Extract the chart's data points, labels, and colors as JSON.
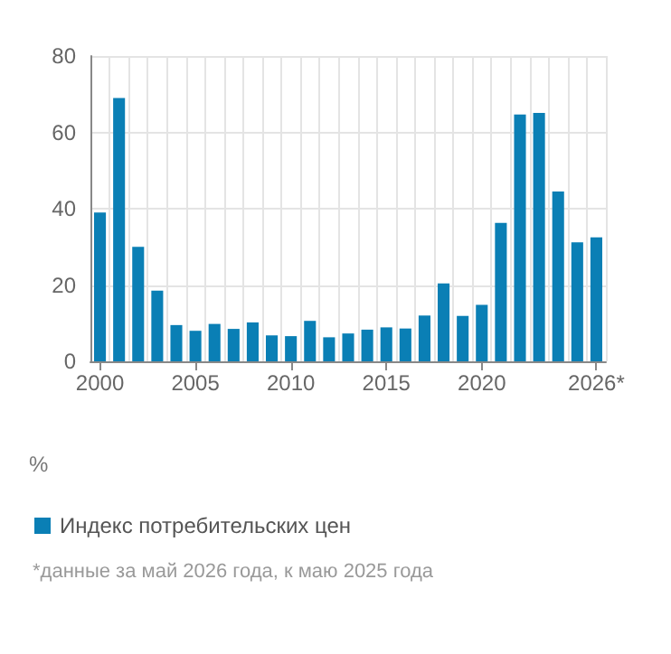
{
  "chart_data": {
    "type": "bar",
    "ylabel": "%",
    "categories": [
      "2000",
      null,
      null,
      null,
      null,
      "2005",
      null,
      null,
      null,
      null,
      "2010",
      null,
      null,
      null,
      null,
      "2015",
      null,
      null,
      null,
      null,
      "2020",
      null,
      null,
      null,
      null,
      null,
      "2026*"
    ],
    "series": [
      {
        "name": "Индекс потребительских цен",
        "color": "#0a7fb5",
        "values": [
          39,
          69,
          30,
          18.5,
          9.5,
          8,
          9.8,
          8.5,
          10.2,
          6.8,
          6.6,
          10.6,
          6.3,
          7.3,
          8.3,
          8.9,
          8.6,
          12,
          20.4,
          11.9,
          14.8,
          36.3,
          64.7,
          65.1,
          44.5,
          31.2,
          32.5
        ]
      }
    ],
    "ylim": [
      0,
      80
    ],
    "yticks": [
      0,
      20,
      40,
      60,
      80
    ],
    "grid": true,
    "legend": "bottom left",
    "annotations": [
      "*данные за май 2026 года, к маю 2025 года"
    ]
  }
}
